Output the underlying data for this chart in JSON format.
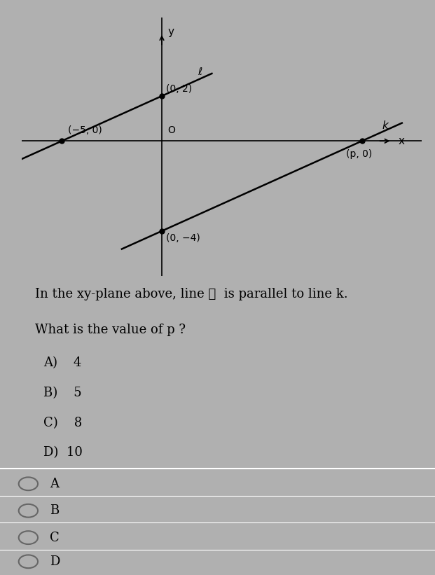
{
  "bg_color": "#b0b0b0",
  "upper_bg_color": "#b8b8b8",
  "title_text": "In the xy-plane above, line ℓ  is parallel to line k.",
  "subtitle_text": "What is the value of p ?",
  "choices": [
    "A)    4",
    "B)    5",
    "C)    8",
    "D)  10"
  ],
  "radio_labels": [
    "A",
    "B",
    "C",
    "D"
  ],
  "label_neg5": "(−5, 0)",
  "label_02": "(0, 2)",
  "label_0neg4": "(0, −4)",
  "label_p0": "(p, 0)",
  "line_l_label": "ℓ",
  "line_k_label": "k",
  "x_label": "x",
  "y_label": "y",
  "origin_label": "O"
}
